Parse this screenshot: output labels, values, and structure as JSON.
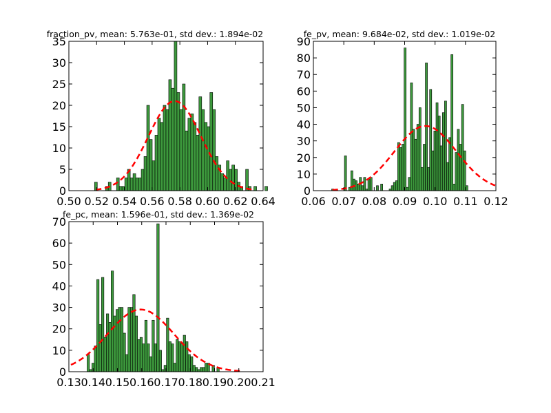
{
  "chart_data": [
    {
      "type": "bar",
      "title": "fraction_pv, mean: 5.763e-01, std dev.: 1.894e-02",
      "xlabel": "",
      "ylabel": "",
      "xlim": [
        0.5,
        0.64
      ],
      "ylim": [
        0,
        35
      ],
      "xticks": [
        "0.50",
        "0.52",
        "0.54",
        "0.56",
        "0.58",
        "0.60",
        "0.62",
        "0.64"
      ],
      "yticks": [
        "0",
        "5",
        "10",
        "15",
        "20",
        "25",
        "30",
        "35"
      ],
      "bin_start": 0.5185,
      "bin_width": 0.00198,
      "counts": [
        2,
        0,
        0,
        0,
        1,
        2,
        0,
        0,
        3,
        1,
        1,
        3,
        5,
        3,
        4,
        3,
        3,
        5,
        8,
        20,
        12,
        7,
        13,
        17,
        16,
        20,
        19,
        26,
        24,
        35,
        23,
        19,
        25,
        14,
        17,
        18,
        16,
        13,
        22,
        19,
        16,
        15,
        23,
        19,
        8,
        6,
        4,
        3,
        7,
        5,
        6,
        5,
        2,
        1,
        0,
        5,
        1,
        0,
        1,
        0,
        0,
        0,
        1,
        0,
        0
      ],
      "fit": {
        "mean": 0.5763,
        "std": 0.01894,
        "peak": 21.0
      },
      "colors": {
        "bar": "#228b22",
        "fit": "#ff0000"
      }
    },
    {
      "type": "bar",
      "title": "fe_pv, mean: 9.684e-02, std dev.: 1.019e-02",
      "xlabel": "",
      "ylabel": "",
      "xlim": [
        0.06,
        0.12
      ],
      "ylim": [
        0,
        90
      ],
      "xticks": [
        "0.06",
        "0.07",
        "0.08",
        "0.09",
        "0.10",
        "0.11",
        "0.12"
      ],
      "yticks": [
        "0",
        "10",
        "20",
        "30",
        "40",
        "50",
        "60",
        "70",
        "80",
        "90"
      ],
      "bin_start": 0.066,
      "bin_width": 0.0007,
      "counts": [
        1,
        0,
        0,
        0,
        0,
        0,
        21,
        0,
        2,
        12,
        7,
        6,
        4,
        8,
        3,
        8,
        1,
        7,
        8,
        0,
        0,
        3,
        0,
        4,
        0,
        0,
        0,
        1,
        3,
        5,
        6,
        29,
        26,
        28,
        86,
        2,
        8,
        65,
        37,
        31,
        40,
        50,
        14,
        28,
        77,
        14,
        61,
        24,
        36,
        53,
        45,
        27,
        47,
        54,
        17,
        32,
        82,
        4,
        23,
        37,
        28,
        52,
        24,
        3
      ],
      "fit": {
        "mean": 0.09684,
        "std": 0.01019,
        "peak": 39.0
      },
      "colors": {
        "bar": "#228b22",
        "fit": "#ff0000"
      }
    },
    {
      "type": "bar",
      "title": "fe_pc, mean: 1.596e-01, std dev.: 1.369e-02",
      "xlabel": "",
      "ylabel": "",
      "xlim": [
        0.13,
        0.21
      ],
      "ylim": [
        0,
        70
      ],
      "xticks": [
        "0.13",
        "0.14",
        "0.15",
        "0.16",
        "0.17",
        "0.18",
        "0.19",
        "0.20",
        "0.21"
      ],
      "yticks": [
        "0",
        "10",
        "20",
        "30",
        "40",
        "50",
        "60",
        "70"
      ],
      "bin_start": 0.1375,
      "bin_width": 0.00099,
      "counts": [
        8,
        1,
        4,
        12,
        43,
        22,
        44,
        16,
        27,
        23,
        47,
        26,
        29,
        30,
        30,
        18,
        8,
        30,
        30,
        36,
        26,
        15,
        16,
        13,
        24,
        13,
        7,
        24,
        13,
        69,
        10,
        1,
        3,
        25,
        14,
        13,
        4,
        15,
        14,
        13,
        17,
        14,
        8,
        7,
        3,
        2,
        1,
        2,
        2,
        4,
        4,
        0,
        3,
        0,
        2,
        0
      ],
      "fit": {
        "mean": 0.1596,
        "std": 0.01369,
        "peak": 29.0
      },
      "colors": {
        "bar": "#228b22",
        "fit": "#ff0000"
      }
    }
  ]
}
